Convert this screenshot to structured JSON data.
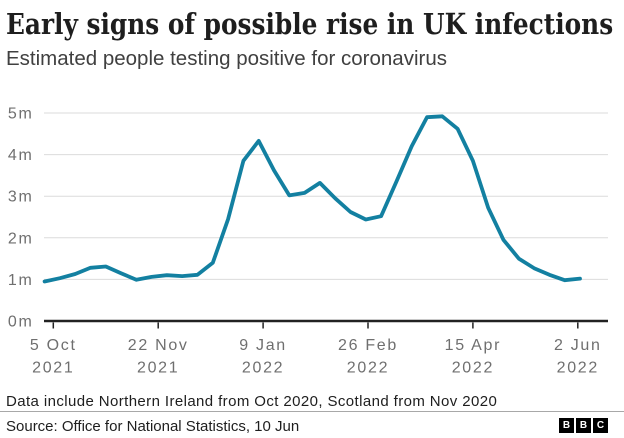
{
  "header": {
    "title": "Early signs of possible rise in UK infections",
    "subtitle": "Estimated people testing positive for coronavirus"
  },
  "footer": {
    "footnote": "Data include Northern Ireland from Oct 2020, Scotland from Nov 2020",
    "source": "Source: Office for National Statistics, 10 Jun",
    "logo_letters": [
      "B",
      "B",
      "C"
    ]
  },
  "chart_data": {
    "type": "line",
    "title": "Early signs of possible rise in UK infections",
    "subtitle": "Estimated people testing positive for coronavirus",
    "xlabel": "",
    "ylabel": "",
    "ylim": [
      0,
      5
    ],
    "grid": true,
    "legend": false,
    "yticks": {
      "values": [
        0,
        1,
        2,
        3,
        4,
        5
      ],
      "labels": [
        "0m",
        "1m",
        "2m",
        "3m",
        "4m",
        "5m"
      ]
    },
    "xticks": [
      {
        "date": "2021-10-05",
        "line1": "5 Oct",
        "line2": "2021"
      },
      {
        "date": "2021-11-22",
        "line1": "22 Nov",
        "line2": "2021"
      },
      {
        "date": "2022-01-09",
        "line1": "9 Jan",
        "line2": "2022"
      },
      {
        "date": "2022-02-26",
        "line1": "26 Feb",
        "line2": "2022"
      },
      {
        "date": "2022-04-15",
        "line1": "15 Apr",
        "line2": "2022"
      },
      {
        "date": "2022-06-02",
        "line1": "2 Jun",
        "line2": "2022"
      }
    ],
    "series": [
      {
        "name": "Estimated people testing positive for coronavirus (millions)",
        "points": [
          {
            "date": "2021-10-01",
            "value": 0.95
          },
          {
            "date": "2021-10-08",
            "value": 1.03
          },
          {
            "date": "2021-10-15",
            "value": 1.13
          },
          {
            "date": "2021-10-22",
            "value": 1.28
          },
          {
            "date": "2021-10-29",
            "value": 1.31
          },
          {
            "date": "2021-11-05",
            "value": 1.15
          },
          {
            "date": "2021-11-12",
            "value": 0.99
          },
          {
            "date": "2021-11-19",
            "value": 1.06
          },
          {
            "date": "2021-11-26",
            "value": 1.1
          },
          {
            "date": "2021-12-03",
            "value": 1.08
          },
          {
            "date": "2021-12-10",
            "value": 1.11
          },
          {
            "date": "2021-12-17",
            "value": 1.4
          },
          {
            "date": "2021-12-24",
            "value": 2.45
          },
          {
            "date": "2021-12-31",
            "value": 3.85
          },
          {
            "date": "2022-01-07",
            "value": 4.33
          },
          {
            "date": "2022-01-14",
            "value": 3.62
          },
          {
            "date": "2022-01-21",
            "value": 3.02
          },
          {
            "date": "2022-01-28",
            "value": 3.08
          },
          {
            "date": "2022-02-04",
            "value": 3.32
          },
          {
            "date": "2022-02-11",
            "value": 2.95
          },
          {
            "date": "2022-02-18",
            "value": 2.62
          },
          {
            "date": "2022-02-25",
            "value": 2.44
          },
          {
            "date": "2022-03-04",
            "value": 2.52
          },
          {
            "date": "2022-03-11",
            "value": 3.35
          },
          {
            "date": "2022-03-18",
            "value": 4.2
          },
          {
            "date": "2022-03-25",
            "value": 4.9
          },
          {
            "date": "2022-04-01",
            "value": 4.92
          },
          {
            "date": "2022-04-08",
            "value": 4.62
          },
          {
            "date": "2022-04-15",
            "value": 3.85
          },
          {
            "date": "2022-04-22",
            "value": 2.72
          },
          {
            "date": "2022-04-29",
            "value": 1.95
          },
          {
            "date": "2022-05-06",
            "value": 1.5
          },
          {
            "date": "2022-05-13",
            "value": 1.27
          },
          {
            "date": "2022-05-20",
            "value": 1.11
          },
          {
            "date": "2022-05-27",
            "value": 0.98
          },
          {
            "date": "2022-06-03",
            "value": 1.02
          }
        ]
      }
    ],
    "line_color": "#1380A1",
    "grid_color": "#dbdbdb",
    "axis_color": "#222222",
    "tick_label_color": "#6f6f6f"
  }
}
